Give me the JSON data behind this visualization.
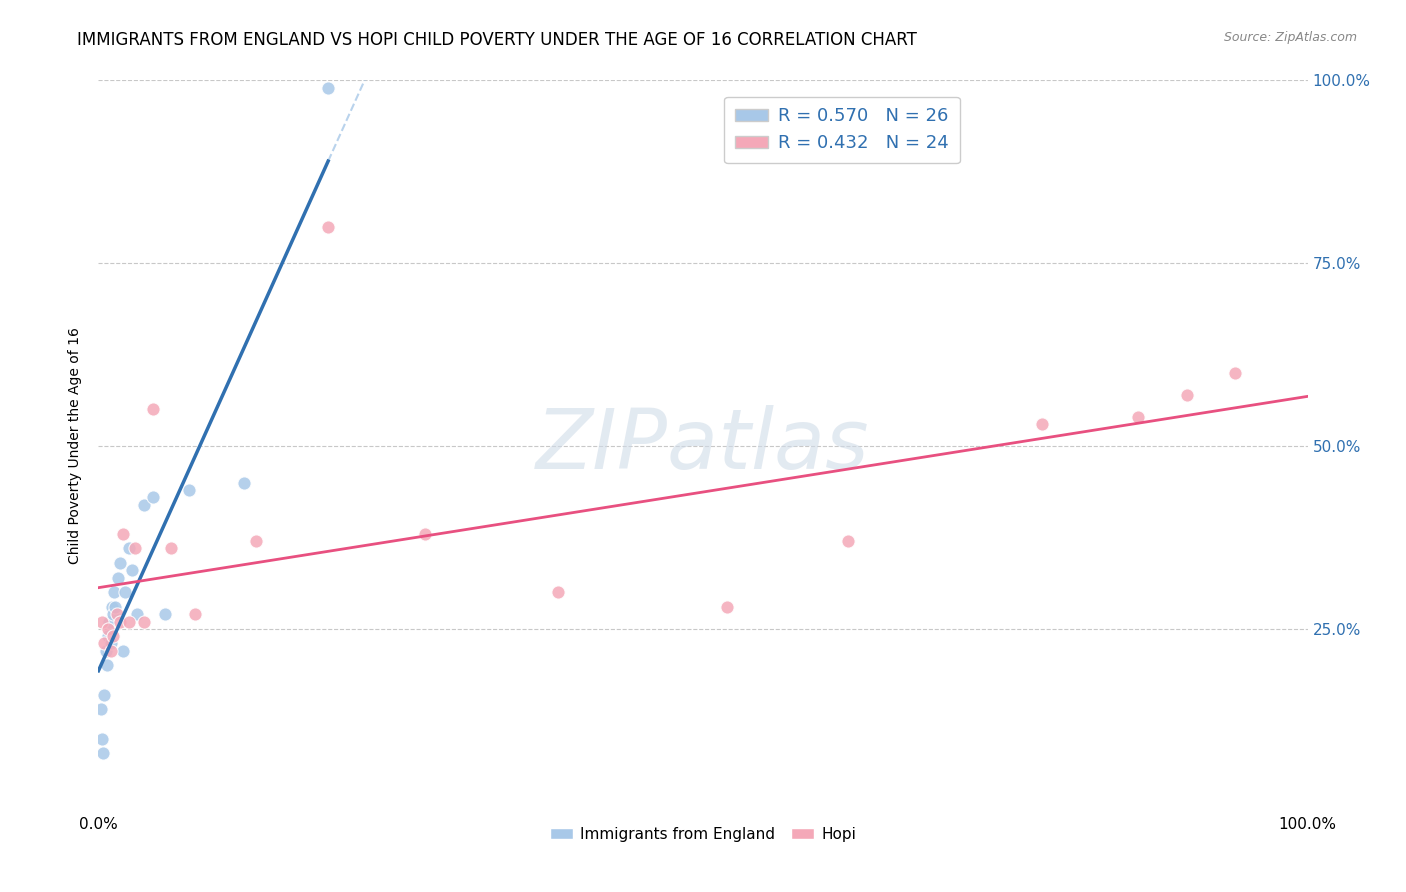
{
  "title": "IMMIGRANTS FROM ENGLAND VS HOPI CHILD POVERTY UNDER THE AGE OF 16 CORRELATION CHART",
  "source": "Source: ZipAtlas.com",
  "ylabel": "Child Poverty Under the Age of 16",
  "legend_label1": "Immigrants from England",
  "legend_label2": "Hopi",
  "r1": 0.57,
  "n1": 26,
  "r2": 0.432,
  "n2": 24,
  "color_blue": "#a8c8e8",
  "color_pink": "#f4a8b8",
  "line_color_blue": "#3070b0",
  "line_color_pink": "#e85080",
  "bg_color": "#ffffff",
  "grid_color": "#c8c8c8",
  "xlim": [
    0,
    1
  ],
  "ylim": [
    0,
    1
  ],
  "blue_x": [
    0.002,
    0.003,
    0.004,
    0.005,
    0.006,
    0.007,
    0.008,
    0.009,
    0.01,
    0.011,
    0.012,
    0.013,
    0.014,
    0.016,
    0.018,
    0.02,
    0.022,
    0.025,
    0.028,
    0.032,
    0.038,
    0.045,
    0.055,
    0.075,
    0.12,
    0.19
  ],
  "blue_y": [
    0.14,
    0.1,
    0.08,
    0.16,
    0.22,
    0.2,
    0.24,
    0.26,
    0.23,
    0.28,
    0.27,
    0.3,
    0.28,
    0.32,
    0.34,
    0.22,
    0.3,
    0.36,
    0.33,
    0.27,
    0.42,
    0.43,
    0.27,
    0.44,
    0.45,
    0.99
  ],
  "pink_x": [
    0.003,
    0.005,
    0.008,
    0.01,
    0.012,
    0.015,
    0.018,
    0.02,
    0.025,
    0.03,
    0.038,
    0.045,
    0.06,
    0.08,
    0.13,
    0.19,
    0.27,
    0.38,
    0.52,
    0.62,
    0.78,
    0.86,
    0.9,
    0.94
  ],
  "pink_y": [
    0.26,
    0.23,
    0.25,
    0.22,
    0.24,
    0.27,
    0.26,
    0.38,
    0.26,
    0.36,
    0.26,
    0.55,
    0.36,
    0.27,
    0.37,
    0.8,
    0.38,
    0.3,
    0.28,
    0.37,
    0.53,
    0.54,
    0.57,
    0.6
  ],
  "title_fontsize": 12,
  "axis_label_fontsize": 10,
  "tick_fontsize": 11,
  "marker_size": 90,
  "watermark_text": "ZIPatlas",
  "watermark_fontsize": 60
}
